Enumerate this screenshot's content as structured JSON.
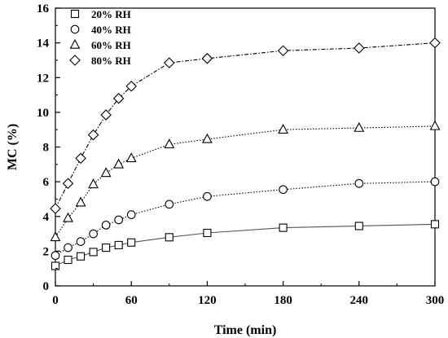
{
  "chart_data": {
    "type": "line",
    "title": "",
    "xlabel": "Time (min)",
    "ylabel": "MC (%)",
    "xlim": [
      0,
      300
    ],
    "ylim": [
      0,
      16
    ],
    "xticks": [
      "0",
      "60",
      "120",
      "180",
      "240",
      "300"
    ],
    "yticks": [
      "0",
      "2",
      "4",
      "6",
      "8",
      "10",
      "12",
      "14",
      "16"
    ],
    "grid": false,
    "legend_position": "top-left",
    "x": [
      0,
      10,
      20,
      30,
      40,
      50,
      60,
      90,
      120,
      180,
      240,
      300
    ],
    "series": [
      {
        "name": "20% RH",
        "marker": "square",
        "line_style": "solid",
        "color": "#555555",
        "values": [
          1.15,
          1.5,
          1.7,
          1.95,
          2.2,
          2.35,
          2.5,
          2.8,
          3.05,
          3.35,
          3.45,
          3.55
        ]
      },
      {
        "name": "40% RH",
        "marker": "circle",
        "line_style": "dotted",
        "color": "#000000",
        "values": [
          1.75,
          2.2,
          2.55,
          3.0,
          3.5,
          3.8,
          4.1,
          4.7,
          5.15,
          5.55,
          5.9,
          6.0
        ]
      },
      {
        "name": "60% RH",
        "marker": "triangle",
        "line_style": "dotted",
        "color": "#000000",
        "values": [
          2.8,
          3.9,
          4.8,
          5.85,
          6.5,
          7.0,
          7.35,
          8.15,
          8.45,
          9.0,
          9.1,
          9.2
        ]
      },
      {
        "name": "80% RH",
        "marker": "diamond",
        "line_style": "dashdot",
        "color": "#000000",
        "values": [
          4.45,
          5.9,
          7.35,
          8.7,
          9.85,
          10.8,
          11.5,
          12.85,
          13.1,
          13.55,
          13.7,
          14.0
        ]
      }
    ]
  }
}
